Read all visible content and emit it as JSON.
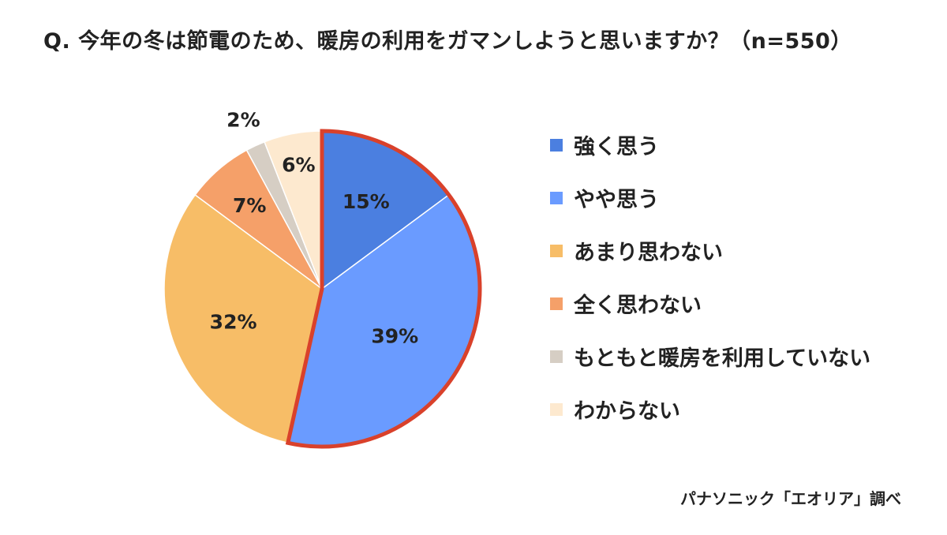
{
  "chart_data": {
    "type": "pie",
    "title": "Q. 今年の冬は節電のため、暖房の利用をガマンしようと思いますか？（n=550）",
    "source": "パナソニック「エオリア」調べ",
    "legend_position": "right",
    "start_angle_deg": 0,
    "direction": "clockwise",
    "highlight": {
      "indices": [
        0,
        1
      ],
      "color": "#d9412b"
    },
    "slices": [
      {
        "label": "強く思う",
        "value": 15,
        "display": "15%",
        "color": "#4b7fe0"
      },
      {
        "label": "やや思う",
        "value": 39,
        "display": "39%",
        "color": "#6a9bff"
      },
      {
        "label": "あまり思わない",
        "value": 32,
        "display": "32%",
        "color": "#f7bd67"
      },
      {
        "label": "全く思わない",
        "value": 7,
        "display": "7%",
        "color": "#f5a069"
      },
      {
        "label": "もともと暖房を利用していない",
        "value": 2,
        "display": "2%",
        "color": "#d6cec4"
      },
      {
        "label": "わからない",
        "value": 6,
        "display": "6%",
        "color": "#fde9cf"
      }
    ]
  }
}
